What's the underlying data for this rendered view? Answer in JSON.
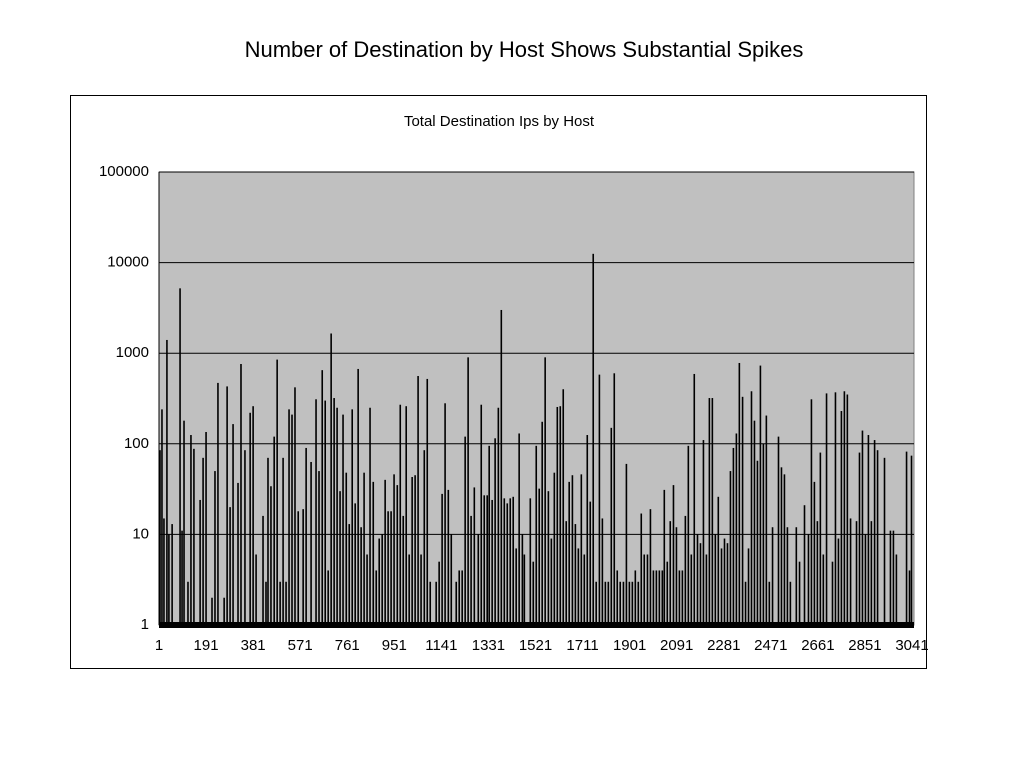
{
  "chart_data": {
    "type": "bar",
    "title": "Number of Destination by Host Shows Substantial Spikes",
    "subtitle": "Total Destination Ips by Host",
    "log_scale": true,
    "grid": true,
    "color": "#000000",
    "background": "#c0c0c0",
    "xlim": [
      1,
      3041
    ],
    "xticks": [
      1,
      191,
      381,
      571,
      761,
      951,
      1141,
      1331,
      1521,
      1711,
      1901,
      2091,
      2281,
      2471,
      2661,
      2851,
      3041
    ],
    "ylim": [
      1,
      100000
    ],
    "yticks": [
      1,
      10,
      100,
      1000,
      10000,
      100000
    ],
    "x": [
      5,
      13,
      21,
      33,
      41,
      54,
      86,
      94,
      102,
      118,
      130,
      142,
      167,
      179,
      191,
      215,
      227,
      239,
      264,
      276,
      288,
      300,
      320,
      332,
      348,
      369,
      381,
      393,
      421,
      433,
      441,
      453,
      466,
      478,
      490,
      502,
      514,
      526,
      538,
      550,
      563,
      583,
      595,
      615,
      635,
      647,
      660,
      672,
      684,
      696,
      708,
      720,
      732,
      744,
      757,
      769,
      781,
      793,
      805,
      817,
      829,
      841,
      853,
      866,
      878,
      890,
      902,
      914,
      926,
      938,
      950,
      963,
      975,
      987,
      999,
      1011,
      1023,
      1035,
      1047,
      1059,
      1072,
      1084,
      1096,
      1120,
      1132,
      1144,
      1156,
      1169,
      1181,
      1201,
      1213,
      1225,
      1237,
      1249,
      1261,
      1274,
      1290,
      1302,
      1314,
      1326,
      1334,
      1346,
      1358,
      1371,
      1383,
      1395,
      1407,
      1419,
      1431,
      1443,
      1455,
      1468,
      1476,
      1500,
      1512,
      1524,
      1536,
      1548,
      1560,
      1573,
      1585,
      1597,
      1609,
      1621,
      1633,
      1645,
      1657,
      1670,
      1682,
      1694,
      1706,
      1718,
      1730,
      1742,
      1754,
      1766,
      1779,
      1791,
      1803,
      1815,
      1827,
      1839,
      1851,
      1863,
      1876,
      1888,
      1900,
      1912,
      1924,
      1936,
      1948,
      1960,
      1973,
      1985,
      1997,
      2009,
      2021,
      2033,
      2041,
      2053,
      2065,
      2078,
      2090,
      2102,
      2114,
      2126,
      2138,
      2150,
      2162,
      2175,
      2187,
      2199,
      2211,
      2223,
      2235,
      2247,
      2259,
      2272,
      2284,
      2296,
      2308,
      2320,
      2332,
      2344,
      2357,
      2369,
      2381,
      2393,
      2405,
      2417,
      2429,
      2441,
      2453,
      2465,
      2478,
      2502,
      2514,
      2526,
      2538,
      2550,
      2574,
      2587,
      2607,
      2623,
      2635,
      2647,
      2659,
      2671,
      2683,
      2696,
      2720,
      2732,
      2744,
      2756,
      2768,
      2780,
      2793,
      2817,
      2829,
      2841,
      2853,
      2865,
      2877,
      2890,
      2902,
      2930,
      2954,
      2966,
      2978,
      3019,
      3031,
      3039
    ],
    "values": [
      85,
      240,
      15,
      1400,
      10,
      13,
      5200,
      11,
      180,
      3,
      125,
      88,
      24,
      70,
      135,
      2,
      50,
      470,
      2,
      430,
      20,
      165,
      37,
      760,
      85,
      220,
      260,
      6,
      16,
      3,
      70,
      34,
      120,
      850,
      3,
      70,
      3,
      240,
      210,
      420,
      18,
      19,
      90,
      63,
      310,
      50,
      650,
      300,
      4,
      1650,
      320,
      250,
      30,
      210,
      48,
      13,
      240,
      22,
      670,
      12,
      48,
      6,
      250,
      38,
      4,
      9,
      10,
      40,
      18,
      18,
      46,
      35,
      270,
      16,
      260,
      6,
      43,
      45,
      560,
      6,
      85,
      520,
      3,
      3,
      5,
      28,
      280,
      31,
      10,
      3,
      4,
      4,
      120,
      900,
      16,
      33,
      10,
      270,
      27,
      27,
      95,
      24,
      115,
      250,
      3000,
      25,
      22,
      25,
      26,
      7,
      130,
      10,
      6,
      25,
      5,
      95,
      32,
      175,
      900,
      30,
      9,
      48,
      255,
      260,
      400,
      14,
      38,
      45,
      13,
      7,
      46,
      6,
      125,
      23,
      12500,
      3,
      580,
      15,
      3,
      3,
      150,
      600,
      4,
      3,
      3,
      60,
      3,
      3,
      4,
      3,
      17,
      6,
      6,
      19,
      4,
      4,
      4,
      4,
      31,
      5,
      14,
      35,
      12,
      4,
      4,
      16,
      95,
      6,
      590,
      10,
      8,
      110,
      6,
      320,
      320,
      10,
      26,
      7,
      9,
      8,
      50,
      90,
      130,
      780,
      330,
      3,
      7,
      380,
      180,
      65,
      730,
      100,
      205,
      3,
      12,
      120,
      55,
      46,
      12,
      3,
      12,
      5,
      21,
      10,
      310,
      38,
      14,
      80,
      6,
      360,
      5,
      370,
      9,
      230,
      380,
      350,
      15,
      14,
      80,
      140,
      10,
      125,
      14,
      110,
      85,
      70,
      11,
      11,
      6,
      82,
      4,
      74
    ]
  }
}
